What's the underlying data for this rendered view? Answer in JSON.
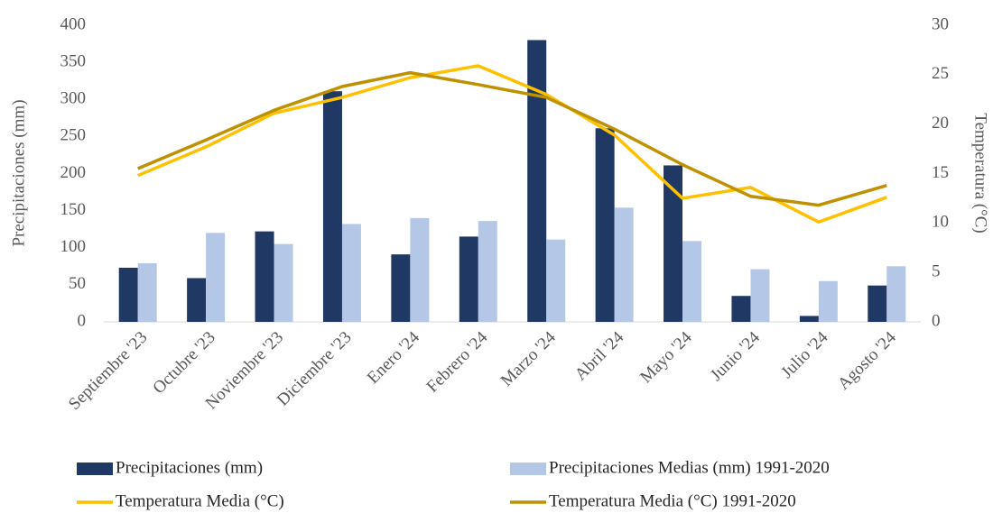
{
  "chart_data": {
    "type": "combo",
    "categories": [
      "Septiembre '23",
      "Octubre '23",
      "Noviembre '23",
      "Diciembre '23",
      "Enero '24",
      "Febrero '24",
      "Marzo '24",
      "Abril '24",
      "Mayo '24",
      "Junio '24",
      "Julio '24",
      "Agosto '24"
    ],
    "y_label": "Precipitaciones (mm)",
    "y2_label": "Temperatura (°C)",
    "ylim": [
      0,
      400
    ],
    "yticks": [
      0,
      50,
      100,
      150,
      200,
      250,
      300,
      350,
      400
    ],
    "y2lim": [
      0,
      30
    ],
    "y2ticks": [
      0,
      5,
      10,
      15,
      20,
      25,
      30
    ],
    "grid": false,
    "legend": "bottom",
    "series": [
      {
        "name": "Precipitaciones (mm)",
        "type": "bar",
        "color": "#1f3864",
        "values": [
          73,
          59,
          122,
          311,
          91,
          115,
          380,
          261,
          211,
          35,
          8,
          49
        ]
      },
      {
        "name": "Precipitaciones Medias (mm) 1991-2020",
        "type": "bar",
        "color": "#b4c7e7",
        "values": [
          79,
          120,
          105,
          132,
          140,
          136,
          111,
          154,
          109,
          71,
          55,
          75
        ]
      },
      {
        "name": "Temperatura Media (°C)",
        "type": "line",
        "axis": "y2",
        "color": "#ffc000",
        "values": [
          14.8,
          17.7,
          21.1,
          22.7,
          24.7,
          25.9,
          23.0,
          18.9,
          12.5,
          13.6,
          10.1,
          12.6
        ]
      },
      {
        "name": "Temperatura Media (°C) 1991-2020",
        "type": "line",
        "axis": "y2",
        "color": "#bf9000",
        "values": [
          15.5,
          18.4,
          21.4,
          23.8,
          25.2,
          24.0,
          22.7,
          19.5,
          15.9,
          12.7,
          11.8,
          13.8
        ]
      }
    ]
  }
}
